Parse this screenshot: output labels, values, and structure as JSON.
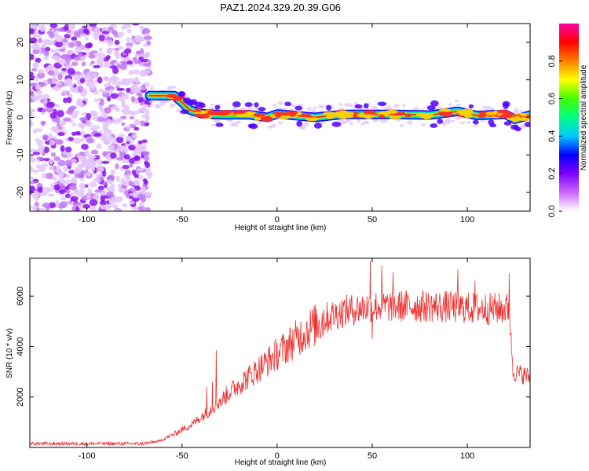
{
  "title": "PAZ1.2024.329.20.39.G06",
  "chart_data": [
    {
      "type": "heatmap",
      "xlabel": "Height of straight line (km)",
      "ylabel": "Frequency (Hz)",
      "xlim": [
        -130,
        133
      ],
      "ylim": [
        -25,
        25
      ],
      "x_ticks": [
        -100,
        -50,
        0,
        50,
        100
      ],
      "y_ticks": [
        -20,
        -10,
        0,
        10,
        20
      ],
      "x_tick_labels": [
        "-100",
        "-50",
        "0",
        "50",
        "100"
      ],
      "y_tick_labels": [
        "-20",
        "-10",
        "0",
        "10",
        "20"
      ],
      "noise_region_x": [
        -130,
        -67
      ],
      "signal_start_x": -67,
      "ridge": [
        {
          "x": -67,
          "y": 5.8
        },
        {
          "x": -54,
          "y": 5.8
        },
        {
          "x": -50,
          "y": 4
        },
        {
          "x": -46,
          "y": 2
        },
        {
          "x": -40,
          "y": 1
        },
        {
          "x": -30,
          "y": 0.7
        },
        {
          "x": -15,
          "y": 0.7
        },
        {
          "x": -5,
          "y": 0
        },
        {
          "x": 0,
          "y": 0.9
        },
        {
          "x": 20,
          "y": 0
        },
        {
          "x": 35,
          "y": 0.8
        },
        {
          "x": 60,
          "y": 0.8
        },
        {
          "x": 80,
          "y": 0.6
        },
        {
          "x": 95,
          "y": 1.6
        },
        {
          "x": 105,
          "y": 0.5
        },
        {
          "x": 120,
          "y": 0.8
        },
        {
          "x": 125,
          "y": -0.5
        },
        {
          "x": 133,
          "y": 0.6
        }
      ],
      "colorbar": {
        "label": "Normalized spectral amplitude",
        "range": [
          0,
          1
        ],
        "ticks": [
          0.0,
          0.2,
          0.4,
          0.6,
          0.8
        ],
        "tick_labels": [
          "0.0",
          "0.2",
          "0.4",
          "0.6",
          "0.8"
        ],
        "colors": [
          "#ffffff",
          "#cc66ff",
          "#8000ff",
          "#0000ff",
          "#00c8ff",
          "#00ff80",
          "#40ff00",
          "#ffff00",
          "#ff8000",
          "#ff0000",
          "#ff00a0"
        ]
      }
    },
    {
      "type": "line",
      "xlabel": "Height of straight line (km)",
      "ylabel": "SNR (10 * v/v)",
      "xlim": [
        -130,
        133
      ],
      "ylim": [
        0,
        7500
      ],
      "x_ticks": [
        -100,
        -50,
        0,
        50,
        100
      ],
      "y_ticks": [
        2000,
        4000,
        6000
      ],
      "x_tick_labels": [
        "-100",
        "-50",
        "0",
        "50",
        "100"
      ],
      "y_tick_labels": [
        "2000",
        "4000",
        "6000"
      ],
      "color": "#ee3333",
      "envelope": [
        {
          "x": -130,
          "y": 150
        },
        {
          "x": -70,
          "y": 150
        },
        {
          "x": -62,
          "y": 250
        },
        {
          "x": -55,
          "y": 500
        },
        {
          "x": -45,
          "y": 900
        },
        {
          "x": -35,
          "y": 1500
        },
        {
          "x": -25,
          "y": 2200
        },
        {
          "x": -15,
          "y": 2800
        },
        {
          "x": -5,
          "y": 3400
        },
        {
          "x": 5,
          "y": 4000
        },
        {
          "x": 15,
          "y": 4600
        },
        {
          "x": 25,
          "y": 5100
        },
        {
          "x": 35,
          "y": 5400
        },
        {
          "x": 50,
          "y": 5600
        },
        {
          "x": 80,
          "y": 5600
        },
        {
          "x": 110,
          "y": 5500
        },
        {
          "x": 122,
          "y": 5500
        },
        {
          "x": 124,
          "y": 3000
        },
        {
          "x": 133,
          "y": 2800
        }
      ],
      "spikes": [
        {
          "x": -32,
          "y": 3850
        },
        {
          "x": -37,
          "y": 2400
        },
        {
          "x": -34,
          "y": 2600
        },
        {
          "x": -29,
          "y": 1700
        },
        {
          "x": 49,
          "y": 7400
        },
        {
          "x": 55,
          "y": 7200
        },
        {
          "x": 61,
          "y": 6950
        },
        {
          "x": 95,
          "y": 7050
        },
        {
          "x": 104,
          "y": 6600
        },
        {
          "x": 122,
          "y": 6900
        },
        {
          "x": 50,
          "y": 4300
        }
      ]
    }
  ]
}
